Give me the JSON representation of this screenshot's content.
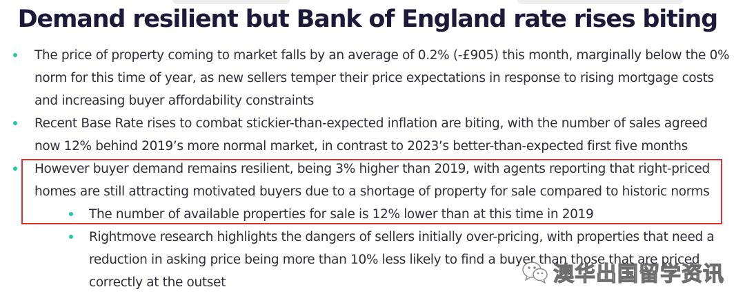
{
  "title": "Demand resilient but Bank of England rate rises biting",
  "bullets": [
    {
      "level": 1,
      "text": "The price of property coming to market falls by an average of 0.2% (-£905) this month, marginally below the 0% norm for this time of year, as new sellers temper their price expectations in response to rising mortgage costs and increasing buyer affordability constraints"
    },
    {
      "level": 1,
      "text": "Recent Base Rate rises to combat stickier-than-expected inflation are biting, with the number of sales agreed now 12% behind 2019’s more normal market, in contrast to 2023’s better-than-expected first five months"
    },
    {
      "level": 1,
      "text": "However buyer demand remains resilient, being 3% higher than 2019, with agents reporting that right-priced homes are still attracting motivated buyers due to a shortage of property for sale compared to historic norms"
    },
    {
      "level": 2,
      "text": "The number of available properties for sale is 12% lower than at this time in 2019"
    },
    {
      "level": 2,
      "text": "Rightmove research highlights the dangers of sellers initially over-pricing, with properties that need a reduction in asking price being more than 10% less likely to find a buyer than those that are priced correctly at the outset"
    }
  ],
  "colors": {
    "title": "#1c1939",
    "body_text": "#2e2e3a",
    "bullet": "#1fc9a6",
    "highlight_border": "#e0322f"
  },
  "watermark": {
    "text": "澳华出国留学资讯",
    "icon": "wechat-logo-icon"
  }
}
